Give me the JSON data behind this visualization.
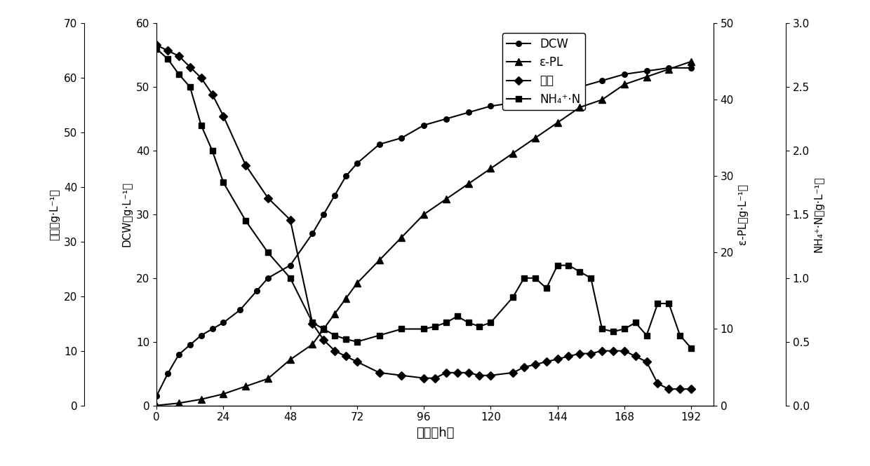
{
  "xlabel": "时间（h）",
  "ylabel_glycerol": "甘油（g·L⁻¹）",
  "ylabel_DCW": "DCW（g·L⁻¹）",
  "ylabel_ePL": "ε-PL（g·L⁻¹）",
  "ylabel_NH4": "NH₄⁺·N（g·L⁻¹）",
  "xlim": [
    0,
    200
  ],
  "xticks": [
    0,
    24,
    48,
    72,
    96,
    120,
    144,
    168,
    192
  ],
  "DCW_ylim": [
    0,
    60
  ],
  "DCW_yticks": [
    0,
    10,
    20,
    30,
    40,
    50,
    60
  ],
  "glycerol_ylim": [
    0,
    70
  ],
  "glycerol_yticks": [
    0,
    10,
    20,
    30,
    40,
    50,
    60,
    70
  ],
  "ePL_ylim": [
    0,
    50
  ],
  "ePL_yticks": [
    0,
    10,
    20,
    30,
    40,
    50
  ],
  "NH4_ylim": [
    0.0,
    3.0
  ],
  "NH4_yticks": [
    0.0,
    0.5,
    1.0,
    1.5,
    2.0,
    2.5,
    3.0
  ],
  "DCW_x": [
    0,
    4,
    8,
    12,
    16,
    20,
    24,
    30,
    36,
    40,
    48,
    56,
    60,
    64,
    68,
    72,
    80,
    88,
    96,
    104,
    112,
    120,
    128,
    136,
    144,
    152,
    160,
    168,
    176,
    184,
    192
  ],
  "DCW_y": [
    1.5,
    5,
    8,
    9.5,
    11,
    12,
    13,
    15,
    18,
    20,
    22,
    27,
    30,
    33,
    36,
    38,
    41,
    42,
    44,
    45,
    46,
    47,
    47.5,
    48,
    49,
    50,
    51,
    52,
    52.5,
    53,
    53
  ],
  "ePL_x": [
    0,
    8,
    16,
    24,
    32,
    40,
    48,
    56,
    60,
    64,
    68,
    72,
    80,
    88,
    96,
    104,
    112,
    120,
    128,
    136,
    144,
    152,
    160,
    168,
    176,
    184,
    192
  ],
  "ePL_y": [
    0,
    0.3,
    0.8,
    1.5,
    2.5,
    3.5,
    6,
    8,
    10,
    12,
    14,
    16,
    19,
    22,
    25,
    27,
    29,
    31,
    33,
    35,
    37,
    39,
    40,
    42,
    43,
    44,
    45
  ],
  "glycerol_x": [
    0,
    4,
    8,
    12,
    16,
    20,
    24,
    32,
    40,
    48,
    56,
    60,
    64,
    68,
    72,
    80,
    88,
    96,
    100,
    104,
    108,
    112,
    116,
    120,
    128,
    132,
    136,
    140,
    144,
    148,
    152,
    156,
    160,
    164,
    168,
    172,
    176,
    180,
    184,
    188,
    192
  ],
  "glycerol_y": [
    66,
    65,
    64,
    62,
    60,
    57,
    53,
    44,
    38,
    34,
    15,
    12,
    10,
    9,
    8,
    6,
    5.5,
    5,
    5,
    6,
    6,
    6,
    5.5,
    5.5,
    6,
    7,
    7.5,
    8,
    8.5,
    9,
    9.5,
    9.5,
    10,
    10,
    10,
    9,
    8,
    4,
    3,
    3,
    3
  ],
  "NH4_x": [
    0,
    4,
    8,
    12,
    16,
    20,
    24,
    32,
    40,
    48,
    56,
    60,
    64,
    68,
    72,
    80,
    88,
    96,
    100,
    104,
    108,
    112,
    116,
    120,
    128,
    132,
    136,
    140,
    144,
    148,
    152,
    156,
    160,
    164,
    168,
    172,
    176,
    180,
    184,
    188,
    192
  ],
  "NH4_y": [
    2.8,
    2.72,
    2.6,
    2.5,
    2.2,
    2.0,
    1.75,
    1.45,
    1.2,
    1.0,
    0.65,
    0.6,
    0.55,
    0.52,
    0.5,
    0.55,
    0.6,
    0.6,
    0.62,
    0.65,
    0.7,
    0.65,
    0.62,
    0.65,
    0.85,
    1.0,
    1.0,
    0.92,
    1.1,
    1.1,
    1.05,
    1.0,
    0.6,
    0.58,
    0.6,
    0.65,
    0.55,
    0.8,
    0.8,
    0.55,
    0.45
  ],
  "legend_DCW": "DCW",
  "legend_ePL": "ε-PL",
  "legend_glycerol": "甘油",
  "legend_NH4": "NH₄⁺·N",
  "line_color": "black"
}
